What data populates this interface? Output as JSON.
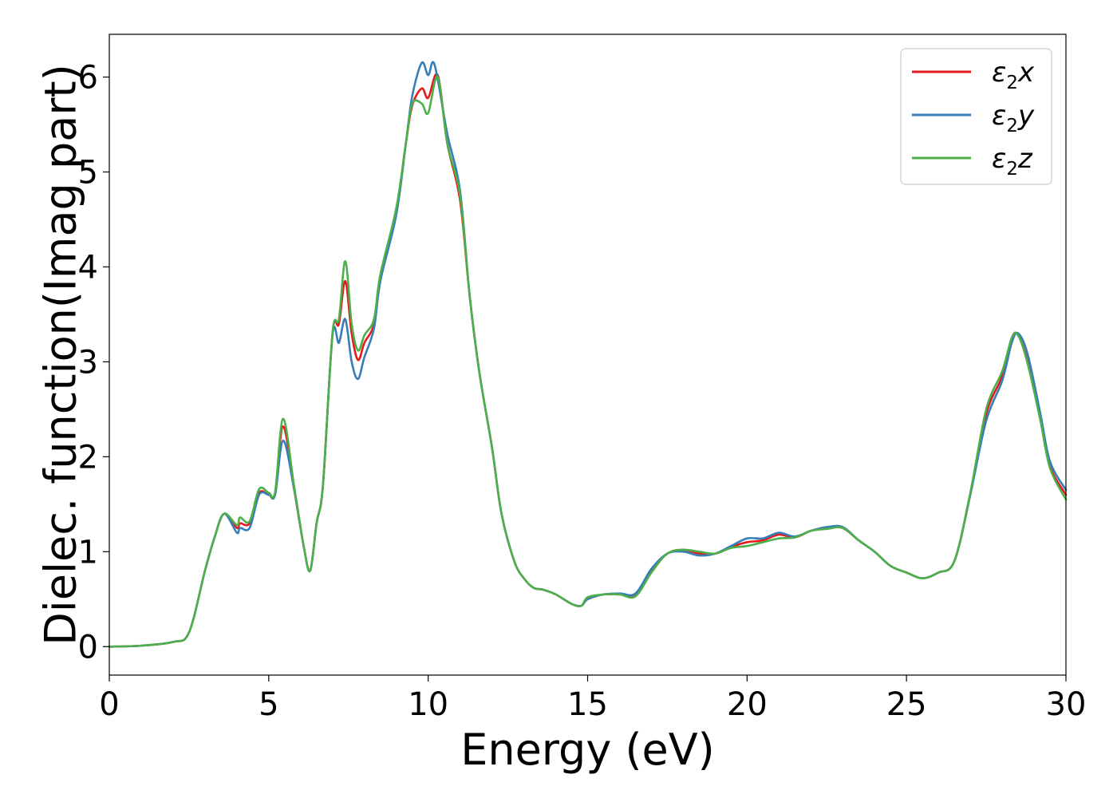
{
  "chart_data": {
    "type": "line",
    "xlabel": "Energy (eV)",
    "ylabel": "Dielec. function(Imag part)",
    "xlim": [
      0,
      30
    ],
    "ylim": [
      -0.3,
      6.45
    ],
    "xticks": [
      0,
      5,
      10,
      15,
      20,
      25,
      30
    ],
    "yticks": [
      0,
      1,
      2,
      3,
      4,
      5,
      6
    ],
    "legend_position": "top-right",
    "grid": false,
    "series": [
      {
        "name": "ε2x",
        "legend_main": "ε",
        "legend_sub": "2",
        "legend_tail": "x",
        "color": "#e41a1c",
        "points": [
          [
            0,
            0
          ],
          [
            1,
            0.01
          ],
          [
            2,
            0.05
          ],
          [
            2.5,
            0.15
          ],
          [
            3,
            0.8
          ],
          [
            3.3,
            1.15
          ],
          [
            3.6,
            1.4
          ],
          [
            4,
            1.25
          ],
          [
            4.1,
            1.3
          ],
          [
            4.4,
            1.3
          ],
          [
            4.7,
            1.62
          ],
          [
            5,
            1.6
          ],
          [
            5.2,
            1.62
          ],
          [
            5.45,
            2.32
          ],
          [
            5.8,
            1.65
          ],
          [
            6.1,
            1.05
          ],
          [
            6.3,
            0.8
          ],
          [
            6.5,
            1.3
          ],
          [
            6.7,
            1.7
          ],
          [
            7,
            3.3
          ],
          [
            7.2,
            3.4
          ],
          [
            7.4,
            3.85
          ],
          [
            7.6,
            3.3
          ],
          [
            7.8,
            3.02
          ],
          [
            8,
            3.2
          ],
          [
            8.3,
            3.4
          ],
          [
            8.5,
            3.9
          ],
          [
            9,
            4.6
          ],
          [
            9.3,
            5.3
          ],
          [
            9.5,
            5.7
          ],
          [
            9.8,
            5.88
          ],
          [
            10,
            5.78
          ],
          [
            10.3,
            6.02
          ],
          [
            10.6,
            5.3
          ],
          [
            11,
            4.7
          ],
          [
            11.3,
            3.7
          ],
          [
            11.6,
            2.9
          ],
          [
            12,
            2.1
          ],
          [
            12.3,
            1.4
          ],
          [
            12.7,
            0.9
          ],
          [
            13,
            0.72
          ],
          [
            13.3,
            0.62
          ],
          [
            13.6,
            0.6
          ],
          [
            14,
            0.55
          ],
          [
            14.5,
            0.45
          ],
          [
            14.8,
            0.43
          ],
          [
            15,
            0.5
          ],
          [
            15.5,
            0.55
          ],
          [
            16,
            0.55
          ],
          [
            16.5,
            0.55
          ],
          [
            17,
            0.8
          ],
          [
            17.5,
            0.98
          ],
          [
            18,
            1.02
          ],
          [
            18.5,
            0.98
          ],
          [
            19,
            0.98
          ],
          [
            19.5,
            1.05
          ],
          [
            20,
            1.1
          ],
          [
            20.5,
            1.12
          ],
          [
            21,
            1.18
          ],
          [
            21.5,
            1.15
          ],
          [
            22,
            1.22
          ],
          [
            22.5,
            1.25
          ],
          [
            23,
            1.25
          ],
          [
            23.5,
            1.12
          ],
          [
            24,
            1.0
          ],
          [
            24.5,
            0.85
          ],
          [
            25,
            0.78
          ],
          [
            25.5,
            0.72
          ],
          [
            26,
            0.78
          ],
          [
            26.5,
            0.9
          ],
          [
            27,
            1.6
          ],
          [
            27.5,
            2.45
          ],
          [
            28,
            2.85
          ],
          [
            28.3,
            3.25
          ],
          [
            28.5,
            3.28
          ],
          [
            28.8,
            3.0
          ],
          [
            29.2,
            2.4
          ],
          [
            29.5,
            1.9
          ],
          [
            30,
            1.6
          ]
        ]
      },
      {
        "name": "ε2y",
        "legend_main": "ε",
        "legend_sub": "2",
        "legend_tail": "y",
        "color": "#377eb8",
        "points": [
          [
            0,
            0
          ],
          [
            1,
            0.01
          ],
          [
            2,
            0.05
          ],
          [
            2.5,
            0.15
          ],
          [
            3,
            0.8
          ],
          [
            3.3,
            1.15
          ],
          [
            3.6,
            1.4
          ],
          [
            4,
            1.2
          ],
          [
            4.1,
            1.25
          ],
          [
            4.4,
            1.25
          ],
          [
            4.7,
            1.6
          ],
          [
            5,
            1.6
          ],
          [
            5.2,
            1.6
          ],
          [
            5.45,
            2.17
          ],
          [
            5.8,
            1.65
          ],
          [
            6.1,
            1.05
          ],
          [
            6.3,
            0.8
          ],
          [
            6.5,
            1.3
          ],
          [
            6.7,
            1.7
          ],
          [
            7,
            3.28
          ],
          [
            7.2,
            3.2
          ],
          [
            7.4,
            3.45
          ],
          [
            7.6,
            3.0
          ],
          [
            7.8,
            2.82
          ],
          [
            8,
            3.05
          ],
          [
            8.3,
            3.35
          ],
          [
            8.5,
            3.85
          ],
          [
            9,
            4.55
          ],
          [
            9.3,
            5.3
          ],
          [
            9.5,
            5.8
          ],
          [
            9.8,
            6.15
          ],
          [
            10,
            6.02
          ],
          [
            10.2,
            6.13
          ],
          [
            10.6,
            5.4
          ],
          [
            11,
            4.8
          ],
          [
            11.3,
            3.7
          ],
          [
            11.6,
            2.9
          ],
          [
            12,
            2.1
          ],
          [
            12.3,
            1.4
          ],
          [
            12.7,
            0.9
          ],
          [
            13,
            0.72
          ],
          [
            13.3,
            0.62
          ],
          [
            13.6,
            0.6
          ],
          [
            14,
            0.55
          ],
          [
            14.5,
            0.45
          ],
          [
            14.8,
            0.43
          ],
          [
            15,
            0.5
          ],
          [
            15.5,
            0.55
          ],
          [
            16,
            0.56
          ],
          [
            16.5,
            0.56
          ],
          [
            17,
            0.82
          ],
          [
            17.5,
            0.98
          ],
          [
            18,
            1.0
          ],
          [
            18.5,
            0.96
          ],
          [
            19,
            0.98
          ],
          [
            19.5,
            1.06
          ],
          [
            20,
            1.14
          ],
          [
            20.5,
            1.14
          ],
          [
            21,
            1.2
          ],
          [
            21.5,
            1.16
          ],
          [
            22,
            1.22
          ],
          [
            22.5,
            1.26
          ],
          [
            23,
            1.26
          ],
          [
            23.5,
            1.12
          ],
          [
            24,
            1.0
          ],
          [
            24.5,
            0.85
          ],
          [
            25,
            0.78
          ],
          [
            25.5,
            0.72
          ],
          [
            26,
            0.78
          ],
          [
            26.5,
            0.9
          ],
          [
            27,
            1.6
          ],
          [
            27.5,
            2.38
          ],
          [
            28,
            2.8
          ],
          [
            28.3,
            3.2
          ],
          [
            28.5,
            3.3
          ],
          [
            28.8,
            3.08
          ],
          [
            29.2,
            2.45
          ],
          [
            29.5,
            1.95
          ],
          [
            30,
            1.65
          ]
        ]
      },
      {
        "name": "ε2z",
        "legend_main": "ε",
        "legend_sub": "2",
        "legend_tail": "z",
        "color": "#4daf4a",
        "points": [
          [
            0,
            0
          ],
          [
            1,
            0.01
          ],
          [
            2,
            0.05
          ],
          [
            2.5,
            0.15
          ],
          [
            3,
            0.8
          ],
          [
            3.3,
            1.15
          ],
          [
            3.6,
            1.4
          ],
          [
            4,
            1.28
          ],
          [
            4.1,
            1.36
          ],
          [
            4.4,
            1.32
          ],
          [
            4.7,
            1.66
          ],
          [
            5,
            1.62
          ],
          [
            5.2,
            1.63
          ],
          [
            5.45,
            2.4
          ],
          [
            5.8,
            1.68
          ],
          [
            6.1,
            1.05
          ],
          [
            6.3,
            0.8
          ],
          [
            6.5,
            1.3
          ],
          [
            6.7,
            1.7
          ],
          [
            7,
            3.3
          ],
          [
            7.2,
            3.45
          ],
          [
            7.4,
            4.06
          ],
          [
            7.6,
            3.4
          ],
          [
            7.8,
            3.12
          ],
          [
            8,
            3.28
          ],
          [
            8.3,
            3.45
          ],
          [
            8.5,
            3.92
          ],
          [
            9,
            4.62
          ],
          [
            9.3,
            5.3
          ],
          [
            9.5,
            5.72
          ],
          [
            9.8,
            5.72
          ],
          [
            10,
            5.62
          ],
          [
            10.3,
            6.0
          ],
          [
            10.6,
            5.3
          ],
          [
            11,
            4.75
          ],
          [
            11.3,
            3.7
          ],
          [
            11.6,
            2.9
          ],
          [
            12,
            2.1
          ],
          [
            12.3,
            1.4
          ],
          [
            12.7,
            0.9
          ],
          [
            13,
            0.72
          ],
          [
            13.3,
            0.62
          ],
          [
            13.6,
            0.6
          ],
          [
            14,
            0.55
          ],
          [
            14.5,
            0.45
          ],
          [
            14.8,
            0.43
          ],
          [
            15,
            0.52
          ],
          [
            15.5,
            0.55
          ],
          [
            16,
            0.55
          ],
          [
            16.5,
            0.53
          ],
          [
            17,
            0.78
          ],
          [
            17.5,
            0.98
          ],
          [
            18,
            1.02
          ],
          [
            18.5,
            1.0
          ],
          [
            19,
            0.98
          ],
          [
            19.5,
            1.04
          ],
          [
            20,
            1.06
          ],
          [
            20.5,
            1.1
          ],
          [
            21,
            1.14
          ],
          [
            21.5,
            1.15
          ],
          [
            22,
            1.22
          ],
          [
            22.5,
            1.24
          ],
          [
            23,
            1.25
          ],
          [
            23.5,
            1.12
          ],
          [
            24,
            1.0
          ],
          [
            24.5,
            0.85
          ],
          [
            25,
            0.78
          ],
          [
            25.5,
            0.72
          ],
          [
            26,
            0.78
          ],
          [
            26.5,
            0.9
          ],
          [
            27,
            1.62
          ],
          [
            27.5,
            2.5
          ],
          [
            28,
            2.9
          ],
          [
            28.3,
            3.25
          ],
          [
            28.5,
            3.28
          ],
          [
            28.8,
            2.98
          ],
          [
            29.2,
            2.38
          ],
          [
            29.5,
            1.88
          ],
          [
            30,
            1.55
          ]
        ]
      }
    ]
  }
}
